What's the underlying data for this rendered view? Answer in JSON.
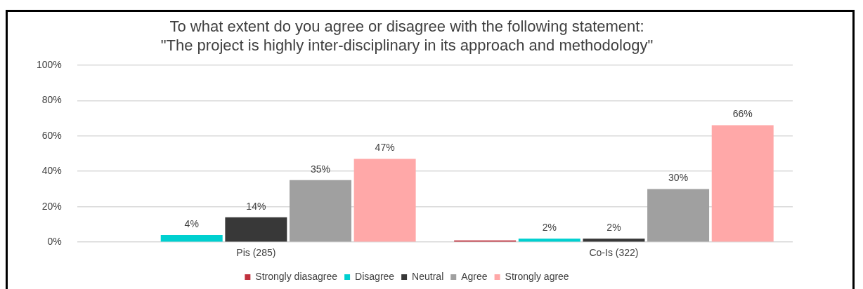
{
  "chart_data": {
    "type": "bar",
    "title": "To what extent do you agree or disagree with the following statement:\n\"The project is highly inter-disciplinary in its approach and methodology\"",
    "categories": [
      "Pis (285)",
      "Co-Is (322)"
    ],
    "series": [
      {
        "name": "Strongly diasagree",
        "color": "#c0303d",
        "values": [
          0,
          1
        ],
        "value_labels": [
          null,
          null
        ]
      },
      {
        "name": "Disagree",
        "color": "#00d0d0",
        "values": [
          4,
          2
        ],
        "value_labels": [
          "4%",
          "2%"
        ]
      },
      {
        "name": "Neutral",
        "color": "#383838",
        "values": [
          14,
          2
        ],
        "value_labels": [
          "14%",
          "2%"
        ]
      },
      {
        "name": "Agree",
        "color": "#a0a0a0",
        "values": [
          35,
          30
        ],
        "value_labels": [
          "35%",
          "30%"
        ]
      },
      {
        "name": "Strongly agree",
        "color": "#ffa8a8",
        "values": [
          47,
          66
        ],
        "value_labels": [
          "47%",
          "66%"
        ]
      }
    ],
    "ylim": [
      0,
      100
    ],
    "yticks": [
      {
        "value": 0,
        "label": "0%"
      },
      {
        "value": 20,
        "label": "20%"
      },
      {
        "value": 40,
        "label": "40%"
      },
      {
        "value": 60,
        "label": "60%"
      },
      {
        "value": 80,
        "label": "80%"
      },
      {
        "value": 100,
        "label": "100%"
      }
    ],
    "grid": "y",
    "legend": "bottom"
  }
}
